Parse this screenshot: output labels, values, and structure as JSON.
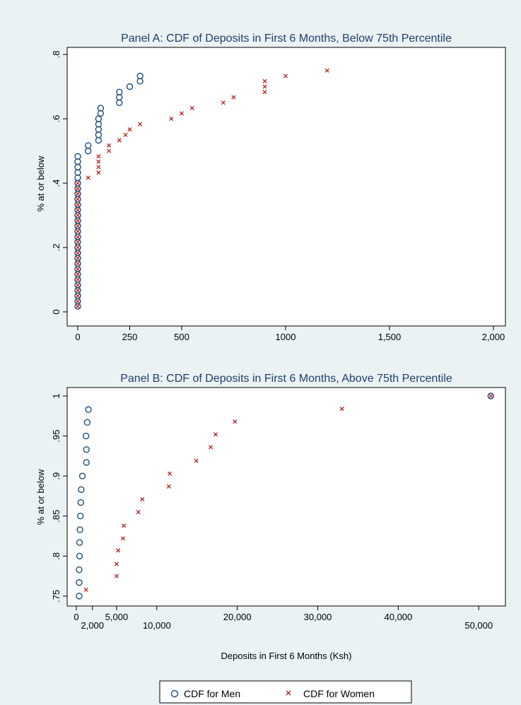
{
  "chart_data": [
    {
      "type": "scatter",
      "title": "Panel A: CDF of Deposits in First 6 Months, Below 75th Percentile",
      "ylabel": "% at or below",
      "xlabel": "",
      "xlim": [
        0,
        2000
      ],
      "ylim": [
        0,
        0.8
      ],
      "x_ticks": [
        0,
        250,
        500,
        1000,
        1500,
        2000
      ],
      "x_tick_labels": [
        "0",
        "250",
        "500",
        "1000",
        "1,500",
        "2,000"
      ],
      "y_ticks": [
        0,
        0.2,
        0.4,
        0.6,
        0.8
      ],
      "y_tick_labels": [
        "0",
        ".2",
        ".4",
        ".6",
        ".8"
      ],
      "series": [
        {
          "name": "CDF for Men",
          "marker": "circle",
          "color": "#1f4e79",
          "points": [
            [
              0,
              0.017
            ],
            [
              0,
              0.033
            ],
            [
              0,
              0.05
            ],
            [
              0,
              0.067
            ],
            [
              0,
              0.083
            ],
            [
              0,
              0.1
            ],
            [
              0,
              0.117
            ],
            [
              0,
              0.133
            ],
            [
              0,
              0.15
            ],
            [
              0,
              0.167
            ],
            [
              0,
              0.183
            ],
            [
              0,
              0.2
            ],
            [
              0,
              0.217
            ],
            [
              0,
              0.233
            ],
            [
              0,
              0.25
            ],
            [
              0,
              0.267
            ],
            [
              0,
              0.283
            ],
            [
              0,
              0.3
            ],
            [
              0,
              0.317
            ],
            [
              0,
              0.333
            ],
            [
              0,
              0.35
            ],
            [
              0,
              0.367
            ],
            [
              0,
              0.383
            ],
            [
              0,
              0.4
            ],
            [
              0,
              0.417
            ],
            [
              0,
              0.433
            ],
            [
              0,
              0.45
            ],
            [
              0,
              0.467
            ],
            [
              0,
              0.483
            ],
            [
              50,
              0.5
            ],
            [
              50,
              0.517
            ],
            [
              100,
              0.533
            ],
            [
              100,
              0.55
            ],
            [
              100,
              0.567
            ],
            [
              100,
              0.583
            ],
            [
              100,
              0.6
            ],
            [
              110,
              0.617
            ],
            [
              110,
              0.633
            ],
            [
              200,
              0.65
            ],
            [
              200,
              0.667
            ],
            [
              200,
              0.683
            ],
            [
              250,
              0.7
            ],
            [
              300,
              0.717
            ],
            [
              300,
              0.733
            ]
          ]
        },
        {
          "name": "CDF for Women",
          "marker": "x",
          "color": "#b22222",
          "points": [
            [
              0,
              0.017
            ],
            [
              0,
              0.033
            ],
            [
              0,
              0.05
            ],
            [
              0,
              0.067
            ],
            [
              0,
              0.083
            ],
            [
              0,
              0.1
            ],
            [
              0,
              0.117
            ],
            [
              0,
              0.133
            ],
            [
              0,
              0.15
            ],
            [
              0,
              0.167
            ],
            [
              0,
              0.183
            ],
            [
              0,
              0.2
            ],
            [
              0,
              0.217
            ],
            [
              0,
              0.233
            ],
            [
              0,
              0.25
            ],
            [
              0,
              0.267
            ],
            [
              0,
              0.283
            ],
            [
              0,
              0.3
            ],
            [
              0,
              0.317
            ],
            [
              0,
              0.333
            ],
            [
              0,
              0.35
            ],
            [
              0,
              0.367
            ],
            [
              0,
              0.383
            ],
            [
              0,
              0.4
            ],
            [
              50,
              0.417
            ],
            [
              100,
              0.433
            ],
            [
              100,
              0.45
            ],
            [
              100,
              0.467
            ],
            [
              100,
              0.483
            ],
            [
              150,
              0.5
            ],
            [
              150,
              0.517
            ],
            [
              200,
              0.533
            ],
            [
              230,
              0.55
            ],
            [
              250,
              0.567
            ],
            [
              300,
              0.583
            ],
            [
              450,
              0.6
            ],
            [
              500,
              0.617
            ],
            [
              550,
              0.633
            ],
            [
              700,
              0.65
            ],
            [
              750,
              0.667
            ],
            [
              900,
              0.683
            ],
            [
              900,
              0.7
            ],
            [
              900,
              0.717
            ],
            [
              1000,
              0.733
            ],
            [
              1200,
              0.75
            ]
          ]
        }
      ]
    },
    {
      "type": "scatter",
      "title": "Panel B: CDF of Deposits in First 6 Months, Above 75th Percentile",
      "ylabel": "% at or below",
      "xlabel": "Deposits in First 6 Months (Ksh)",
      "xlim": [
        0,
        52000
      ],
      "ylim": [
        0.75,
        1.0
      ],
      "x_ticks": [
        0,
        2000,
        5000,
        10000,
        20000,
        30000,
        40000,
        50000
      ],
      "x_tick_labels": [
        "0",
        "2,000",
        "5,000",
        "10,000",
        "20,000",
        "30,000",
        "40,000",
        "50,000"
      ],
      "y_ticks": [
        0.75,
        0.8,
        0.85,
        0.9,
        0.95,
        1.0
      ],
      "y_tick_labels": [
        ".75",
        ".8",
        ".85",
        ".9",
        ".95",
        "1"
      ],
      "series": [
        {
          "name": "CDF for Men",
          "marker": "circle",
          "color": "#1f4e79",
          "points": [
            [
              350,
              0.75
            ],
            [
              350,
              0.767
            ],
            [
              350,
              0.783
            ],
            [
              400,
              0.8
            ],
            [
              400,
              0.817
            ],
            [
              450,
              0.833
            ],
            [
              500,
              0.85
            ],
            [
              550,
              0.867
            ],
            [
              600,
              0.883
            ],
            [
              750,
              0.9
            ],
            [
              1250,
              0.917
            ],
            [
              1250,
              0.933
            ],
            [
              1200,
              0.95
            ],
            [
              1350,
              0.967
            ],
            [
              1500,
              0.983
            ],
            [
              51500,
              1.0
            ]
          ]
        },
        {
          "name": "CDF for Women",
          "marker": "x",
          "color": "#b22222",
          "points": [
            [
              1200,
              0.758
            ],
            [
              5000,
              0.775
            ],
            [
              5000,
              0.79
            ],
            [
              5200,
              0.807
            ],
            [
              5800,
              0.822
            ],
            [
              5900,
              0.838
            ],
            [
              7700,
              0.855
            ],
            [
              8200,
              0.871
            ],
            [
              11500,
              0.887
            ],
            [
              11600,
              0.903
            ],
            [
              14900,
              0.919
            ],
            [
              16700,
              0.936
            ],
            [
              17300,
              0.952
            ],
            [
              19700,
              0.968
            ],
            [
              33000,
              0.984
            ],
            [
              51500,
              1.0
            ]
          ]
        }
      ]
    }
  ],
  "legend": {
    "items": [
      {
        "label": "CDF for Men",
        "marker": "circle",
        "color": "#1f4e79"
      },
      {
        "label": "CDF for Women",
        "marker": "x",
        "color": "#b22222"
      }
    ],
    "placement": "bottom-center"
  }
}
